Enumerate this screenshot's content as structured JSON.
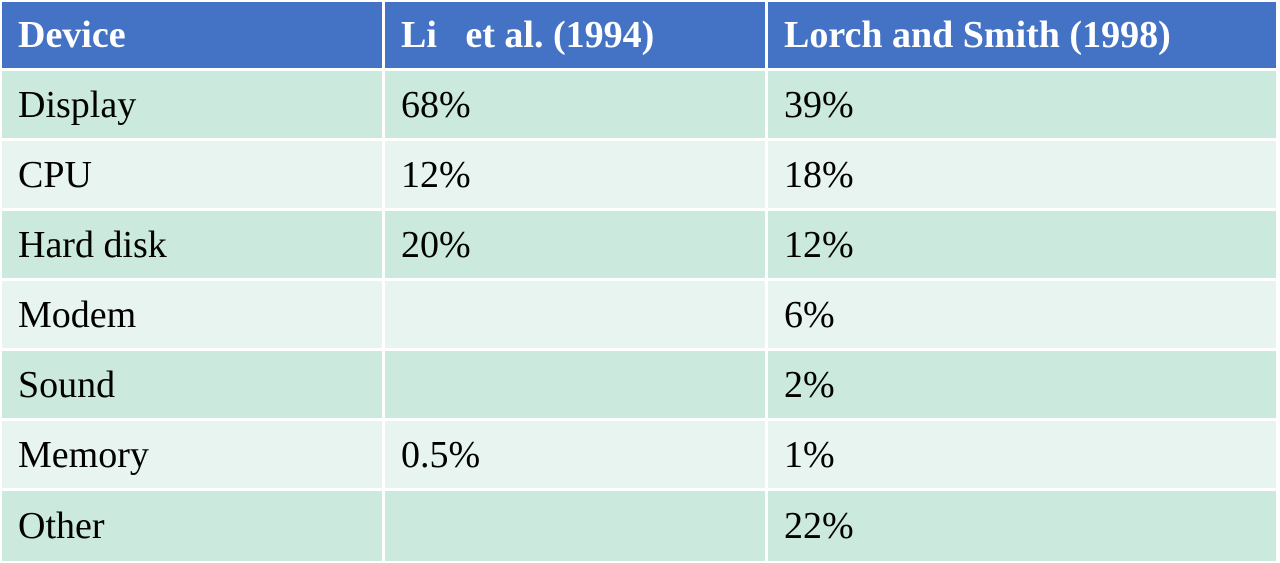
{
  "table": {
    "headers": [
      "Device",
      "Li   et al. (1994)",
      "Lorch and Smith (1998)"
    ],
    "rows": [
      [
        "Display",
        "68%",
        "39%"
      ],
      [
        "CPU",
        "12%",
        "18%"
      ],
      [
        "Hard disk",
        "20%",
        "12%"
      ],
      [
        "Modem",
        "",
        "6%"
      ],
      [
        "Sound",
        "",
        "2%"
      ],
      [
        "Memory",
        "0.5%",
        "1%"
      ],
      [
        "Other",
        "",
        "22%"
      ]
    ]
  },
  "colors": {
    "header_bg": "#4472c4",
    "header_text": "#ffffff",
    "row_band_dark": "#cbe9dd",
    "row_band_light": "#e7f4ef"
  }
}
